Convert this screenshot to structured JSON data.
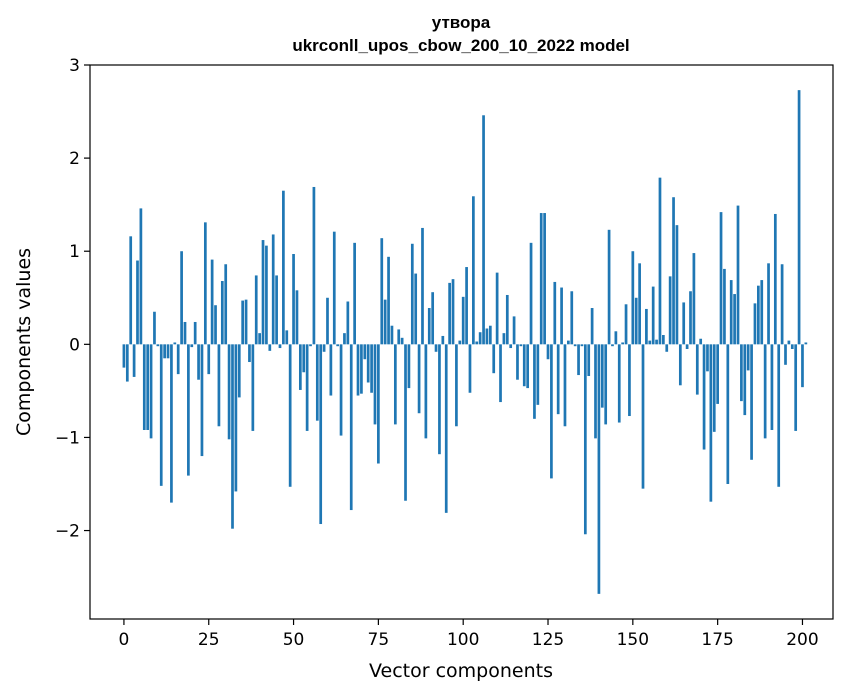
{
  "chart_data": {
    "type": "bar",
    "title_line1": "утвора",
    "title_line2": "ukrconll_upos_cbow_200_10_2022 model",
    "xlabel": "Vector components",
    "ylabel": "Components values",
    "xlim": [
      -10,
      209
    ],
    "ylim": [
      -2.95,
      3.0
    ],
    "x_ticks": [
      0,
      25,
      50,
      75,
      100,
      125,
      150,
      175,
      200
    ],
    "x_tick_labels": [
      "0",
      "25",
      "50",
      "75",
      "100",
      "125",
      "150",
      "175",
      "200"
    ],
    "y_ticks": [
      -2,
      -1,
      0,
      1,
      2,
      3
    ],
    "y_tick_labels": [
      "−2",
      "−1",
      "0",
      "1",
      "2",
      "3"
    ],
    "bar_color": "#1f77b4",
    "values": [
      -0.25,
      -0.4,
      1.16,
      -0.35,
      0.9,
      1.46,
      -0.92,
      -0.92,
      -1.01,
      0.35,
      -0.02,
      -1.52,
      -0.15,
      -0.15,
      -1.7,
      0.02,
      -0.32,
      1.0,
      0.24,
      -1.41,
      -0.03,
      0.24,
      -0.38,
      -1.2,
      1.31,
      -0.32,
      0.91,
      0.42,
      -0.88,
      0.68,
      0.86,
      -1.02,
      -1.98,
      -1.58,
      -0.57,
      0.47,
      0.48,
      -0.19,
      -0.93,
      0.74,
      0.12,
      1.12,
      1.06,
      -0.07,
      1.18,
      0.74,
      -0.04,
      1.65,
      0.15,
      -1.53,
      0.97,
      0.58,
      -0.49,
      -0.3,
      -0.93,
      -0.02,
      1.69,
      -0.82,
      -1.93,
      -0.08,
      0.5,
      -0.55,
      1.21,
      -0.02,
      -0.98,
      0.12,
      0.46,
      -1.78,
      1.09,
      -0.55,
      -0.53,
      -0.16,
      -0.41,
      -0.52,
      -0.86,
      -1.28,
      1.14,
      0.48,
      0.94,
      0.2,
      -0.86,
      0.16,
      0.07,
      -1.68,
      -0.47,
      1.08,
      0.76,
      -0.74,
      1.25,
      -1.01,
      0.39,
      0.56,
      -0.08,
      -1.18,
      0.09,
      -1.81,
      0.66,
      0.7,
      -0.88,
      0.04,
      0.51,
      0.83,
      -0.52,
      1.59,
      0.03,
      0.13,
      2.46,
      0.17,
      0.2,
      -0.31,
      0.77,
      -0.62,
      0.12,
      0.53,
      -0.04,
      0.3,
      -0.38,
      -0.02,
      -0.45,
      -0.47,
      1.09,
      -0.8,
      -0.65,
      1.41,
      1.41,
      -0.16,
      -1.44,
      0.67,
      -0.75,
      0.61,
      -0.88,
      0.04,
      0.57,
      -0.02,
      -0.33,
      -0.02,
      -2.04,
      -0.34,
      0.39,
      -1.01,
      -2.68,
      -0.68,
      -0.86,
      1.23,
      -0.02,
      0.14,
      -0.84,
      0.02,
      0.43,
      -0.77,
      1.0,
      0.5,
      0.87,
      -1.55,
      0.38,
      0.04,
      0.62,
      0.05,
      1.79,
      0.1,
      -0.08,
      0.73,
      1.58,
      1.28,
      -0.44,
      0.45,
      -0.05,
      0.57,
      0.98,
      -0.54,
      0.06,
      -1.13,
      -0.29,
      -1.69,
      -0.94,
      -0.64,
      1.42,
      0.81,
      -1.5,
      0.69,
      0.54,
      1.49,
      -0.61,
      -0.76,
      -0.28,
      -1.24,
      0.44,
      0.63,
      0.69,
      -1.01,
      0.87,
      -0.92,
      1.4,
      -1.53,
      0.86,
      -0.22,
      0.04,
      -0.05,
      -0.93,
      2.73,
      -0.46,
      0.02
    ]
  }
}
